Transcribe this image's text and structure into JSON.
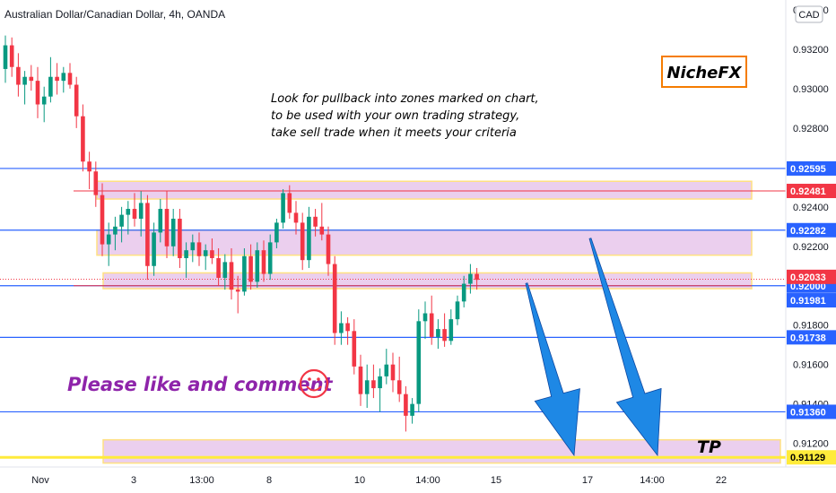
{
  "chart_data": {
    "type": "candlestick",
    "title": "Australian Dollar/Canadian Dollar, 4h, OANDA",
    "currency": "CAD",
    "ylim": [
      0.9108,
      0.9345
    ],
    "y_ticks": [
      "0.93400",
      "0.93200",
      "0.93000",
      "0.92800",
      "0.92400",
      "0.92200",
      "0.91800",
      "0.91600",
      "0.91400",
      "0.91200"
    ],
    "x_ticks": [
      "Nov",
      "3",
      "13:00",
      "8",
      "10",
      "14:00",
      "15",
      "17",
      "14:00",
      "22"
    ],
    "horizontal_levels": [
      {
        "price": 0.92595,
        "label": "0.92595",
        "color": "#2962ff"
      },
      {
        "price": 0.92282,
        "label": "0.92282",
        "color": "#2962ff"
      },
      {
        "price": 0.92,
        "label": "0.92000",
        "color": "#2962ff"
      },
      {
        "price": 0.91738,
        "label": "0.91738",
        "color": "#2962ff"
      },
      {
        "price": 0.9136,
        "label": "0.91360",
        "color": "#2962ff"
      },
      {
        "price": 0.91129,
        "label": "0.91129",
        "color": "#ffeb3b"
      }
    ],
    "extra_labels": [
      {
        "price": 0.92481,
        "label": "0.92481",
        "color": "#f23645"
      },
      {
        "price": 0.92033,
        "label": "0.92033",
        "color": "#f23645"
      },
      {
        "price": 0.91981,
        "label": "0.91981",
        "color": "#2962ff"
      }
    ],
    "zones": [
      {
        "low": 0.9244,
        "high": 0.9253
      },
      {
        "low": 0.92155,
        "high": 0.92282
      },
      {
        "low": 0.91985,
        "high": 0.92065
      },
      {
        "low": 0.911,
        "high": 0.91218
      }
    ],
    "candles": [
      {
        "o": 0.931,
        "h": 0.9327,
        "l": 0.9303,
        "c": 0.9322
      },
      {
        "o": 0.9322,
        "h": 0.9326,
        "l": 0.9306,
        "c": 0.9311
      },
      {
        "o": 0.9311,
        "h": 0.9318,
        "l": 0.9296,
        "c": 0.9302
      },
      {
        "o": 0.9302,
        "h": 0.9309,
        "l": 0.9292,
        "c": 0.9306
      },
      {
        "o": 0.9306,
        "h": 0.9312,
        "l": 0.9299,
        "c": 0.9304
      },
      {
        "o": 0.9304,
        "h": 0.9311,
        "l": 0.9285,
        "c": 0.9292
      },
      {
        "o": 0.9292,
        "h": 0.9301,
        "l": 0.9283,
        "c": 0.9296
      },
      {
        "o": 0.9296,
        "h": 0.9316,
        "l": 0.9293,
        "c": 0.9306
      },
      {
        "o": 0.9306,
        "h": 0.9313,
        "l": 0.9297,
        "c": 0.9304
      },
      {
        "o": 0.9304,
        "h": 0.9311,
        "l": 0.9298,
        "c": 0.9308
      },
      {
        "o": 0.9308,
        "h": 0.9313,
        "l": 0.93,
        "c": 0.9302
      },
      {
        "o": 0.9302,
        "h": 0.9306,
        "l": 0.928,
        "c": 0.9286
      },
      {
        "o": 0.9286,
        "h": 0.9292,
        "l": 0.9258,
        "c": 0.9263
      },
      {
        "o": 0.9263,
        "h": 0.9268,
        "l": 0.9249,
        "c": 0.9258
      },
      {
        "o": 0.9258,
        "h": 0.9263,
        "l": 0.924,
        "c": 0.9246
      },
      {
        "o": 0.9246,
        "h": 0.9252,
        "l": 0.9215,
        "c": 0.9221
      },
      {
        "o": 0.9221,
        "h": 0.9232,
        "l": 0.921,
        "c": 0.9226
      },
      {
        "o": 0.9226,
        "h": 0.9235,
        "l": 0.9218,
        "c": 0.923
      },
      {
        "o": 0.923,
        "h": 0.924,
        "l": 0.9222,
        "c": 0.9236
      },
      {
        "o": 0.9236,
        "h": 0.9243,
        "l": 0.9226,
        "c": 0.9239
      },
      {
        "o": 0.9239,
        "h": 0.9247,
        "l": 0.923,
        "c": 0.9234
      },
      {
        "o": 0.9234,
        "h": 0.9248,
        "l": 0.9225,
        "c": 0.9242
      },
      {
        "o": 0.9242,
        "h": 0.9246,
        "l": 0.9203,
        "c": 0.921
      },
      {
        "o": 0.921,
        "h": 0.9232,
        "l": 0.9205,
        "c": 0.9227
      },
      {
        "o": 0.9227,
        "h": 0.9244,
        "l": 0.9222,
        "c": 0.9239
      },
      {
        "o": 0.9239,
        "h": 0.9248,
        "l": 0.9214,
        "c": 0.922
      },
      {
        "o": 0.922,
        "h": 0.9239,
        "l": 0.9215,
        "c": 0.9234
      },
      {
        "o": 0.9234,
        "h": 0.9239,
        "l": 0.9209,
        "c": 0.9214
      },
      {
        "o": 0.9214,
        "h": 0.9222,
        "l": 0.9204,
        "c": 0.9218
      },
      {
        "o": 0.9218,
        "h": 0.9226,
        "l": 0.9212,
        "c": 0.9222
      },
      {
        "o": 0.9222,
        "h": 0.9227,
        "l": 0.921,
        "c": 0.9215
      },
      {
        "o": 0.9215,
        "h": 0.9221,
        "l": 0.9208,
        "c": 0.9218
      },
      {
        "o": 0.9218,
        "h": 0.9224,
        "l": 0.9211,
        "c": 0.9214
      },
      {
        "o": 0.9214,
        "h": 0.9219,
        "l": 0.92,
        "c": 0.9204
      },
      {
        "o": 0.9204,
        "h": 0.9216,
        "l": 0.9198,
        "c": 0.9212
      },
      {
        "o": 0.9212,
        "h": 0.9219,
        "l": 0.9193,
        "c": 0.9198
      },
      {
        "o": 0.9198,
        "h": 0.9205,
        "l": 0.9186,
        "c": 0.9197
      },
      {
        "o": 0.9197,
        "h": 0.9219,
        "l": 0.9195,
        "c": 0.9215
      },
      {
        "o": 0.9215,
        "h": 0.9221,
        "l": 0.9198,
        "c": 0.9202
      },
      {
        "o": 0.9202,
        "h": 0.9222,
        "l": 0.9199,
        "c": 0.9218
      },
      {
        "o": 0.9218,
        "h": 0.9223,
        "l": 0.9202,
        "c": 0.9206
      },
      {
        "o": 0.9206,
        "h": 0.9226,
        "l": 0.9203,
        "c": 0.9222
      },
      {
        "o": 0.9222,
        "h": 0.9234,
        "l": 0.9219,
        "c": 0.9232
      },
      {
        "o": 0.9232,
        "h": 0.9249,
        "l": 0.9229,
        "c": 0.9247
      },
      {
        "o": 0.9247,
        "h": 0.9251,
        "l": 0.9234,
        "c": 0.9237
      },
      {
        "o": 0.9237,
        "h": 0.9243,
        "l": 0.9226,
        "c": 0.9232
      },
      {
        "o": 0.9232,
        "h": 0.9237,
        "l": 0.9208,
        "c": 0.9213
      },
      {
        "o": 0.9213,
        "h": 0.924,
        "l": 0.9209,
        "c": 0.9235
      },
      {
        "o": 0.9235,
        "h": 0.9239,
        "l": 0.9225,
        "c": 0.923
      },
      {
        "o": 0.923,
        "h": 0.9242,
        "l": 0.9223,
        "c": 0.9226
      },
      {
        "o": 0.9226,
        "h": 0.923,
        "l": 0.9205,
        "c": 0.9211
      },
      {
        "o": 0.9211,
        "h": 0.9215,
        "l": 0.917,
        "c": 0.9176
      },
      {
        "o": 0.9176,
        "h": 0.9187,
        "l": 0.917,
        "c": 0.9181
      },
      {
        "o": 0.9181,
        "h": 0.9184,
        "l": 0.917,
        "c": 0.9177
      },
      {
        "o": 0.9177,
        "h": 0.9183,
        "l": 0.9155,
        "c": 0.9159
      },
      {
        "o": 0.9159,
        "h": 0.9165,
        "l": 0.9139,
        "c": 0.9145
      },
      {
        "o": 0.9145,
        "h": 0.916,
        "l": 0.9138,
        "c": 0.9152
      },
      {
        "o": 0.9152,
        "h": 0.916,
        "l": 0.9143,
        "c": 0.9148
      },
      {
        "o": 0.9148,
        "h": 0.9158,
        "l": 0.9136,
        "c": 0.9154
      },
      {
        "o": 0.9154,
        "h": 0.9168,
        "l": 0.915,
        "c": 0.916
      },
      {
        "o": 0.916,
        "h": 0.9166,
        "l": 0.9146,
        "c": 0.9152
      },
      {
        "o": 0.9152,
        "h": 0.9164,
        "l": 0.9141,
        "c": 0.9145
      },
      {
        "o": 0.9145,
        "h": 0.9149,
        "l": 0.9126,
        "c": 0.9134
      },
      {
        "o": 0.9134,
        "h": 0.9143,
        "l": 0.913,
        "c": 0.914
      },
      {
        "o": 0.914,
        "h": 0.9188,
        "l": 0.9136,
        "c": 0.9182
      },
      {
        "o": 0.9182,
        "h": 0.9192,
        "l": 0.9173,
        "c": 0.9186
      },
      {
        "o": 0.9186,
        "h": 0.9195,
        "l": 0.917,
        "c": 0.9174
      },
      {
        "o": 0.9174,
        "h": 0.9183,
        "l": 0.9168,
        "c": 0.9178
      },
      {
        "o": 0.9178,
        "h": 0.9186,
        "l": 0.9169,
        "c": 0.9172
      },
      {
        "o": 0.9172,
        "h": 0.9188,
        "l": 0.917,
        "c": 0.9183
      },
      {
        "o": 0.9183,
        "h": 0.9195,
        "l": 0.918,
        "c": 0.9192
      },
      {
        "o": 0.9192,
        "h": 0.9205,
        "l": 0.9189,
        "c": 0.9201
      },
      {
        "o": 0.9201,
        "h": 0.9211,
        "l": 0.9196,
        "c": 0.9206
      },
      {
        "o": 0.9206,
        "h": 0.9209,
        "l": 0.9198,
        "c": 0.9203
      }
    ],
    "colors": {
      "up": "#089981",
      "down": "#f23645",
      "zone_fill": "#e6c3ea",
      "zone_border": "#ffe082",
      "arrow": "#1e88e5",
      "brand_border": "#f57c00"
    }
  },
  "annotations": {
    "note_lines": [
      "Look for pullback into zones marked on chart,",
      "to be used with your own trading strategy,",
      "take sell trade when it meets your criteria"
    ],
    "brand": "NicheFX",
    "cta": "Please like and comment",
    "smiley": "☺",
    "tp_label": "TP"
  }
}
